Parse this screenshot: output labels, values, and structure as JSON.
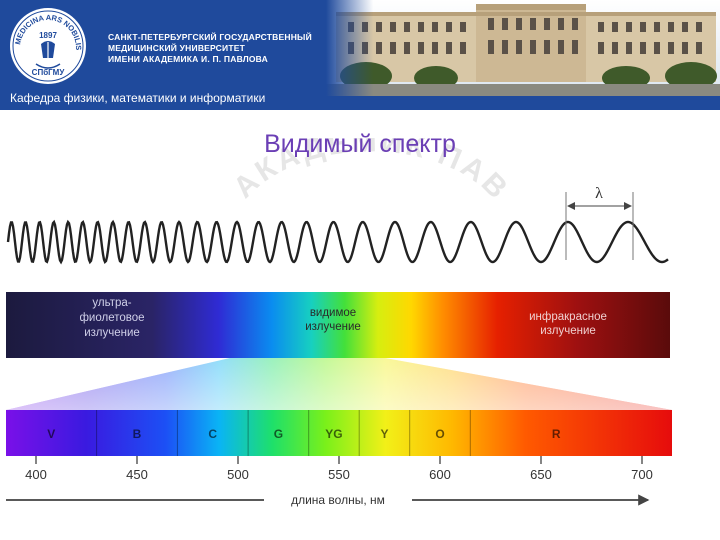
{
  "header": {
    "logo": {
      "text_top": "MEDICINA ARS NOBILISSIMA",
      "year": "1897",
      "abbr": "СПбГМУ"
    },
    "university_lines": [
      "САНКТ-ПЕТЕРБУРГСКИЙ ГОСУДАРСТВЕННЫЙ",
      "МЕДИЦИНСКИЙ УНИВЕРСИТЕТ",
      "ИМЕНИ АКАДЕМИКА И. П. ПАВЛОВА"
    ],
    "department": "Кафедра физики,  математики и информатики"
  },
  "slide": {
    "title": "Видимый спектр",
    "watermark": "АКАДЕМИК ПАВЛОВ"
  },
  "figure": {
    "lambda_symbol": "λ",
    "spectrum_labels": {
      "uv": [
        "ультра-",
        "фиолетовое",
        "излучение"
      ],
      "visible": [
        "видимое",
        "излучение"
      ],
      "ir": [
        "инфракрасное",
        "излучение"
      ]
    },
    "bands": [
      {
        "label": "V",
        "from": 380,
        "to": 430
      },
      {
        "label": "B",
        "from": 430,
        "to": 470
      },
      {
        "label": "C",
        "from": 470,
        "to": 505
      },
      {
        "label": "G",
        "from": 505,
        "to": 535
      },
      {
        "label": "YG",
        "from": 535,
        "to": 560
      },
      {
        "label": "Y",
        "from": 560,
        "to": 585
      },
      {
        "label": "O",
        "from": 585,
        "to": 615
      },
      {
        "label": "R",
        "from": 615,
        "to": 700
      }
    ],
    "ticks": [
      "400",
      "450",
      "500",
      "550",
      "600",
      "650",
      "700"
    ],
    "axis_label": "длина волны, нм"
  },
  "colors": {
    "banner": "#1f4a9c",
    "title": "#6b3fb5"
  }
}
